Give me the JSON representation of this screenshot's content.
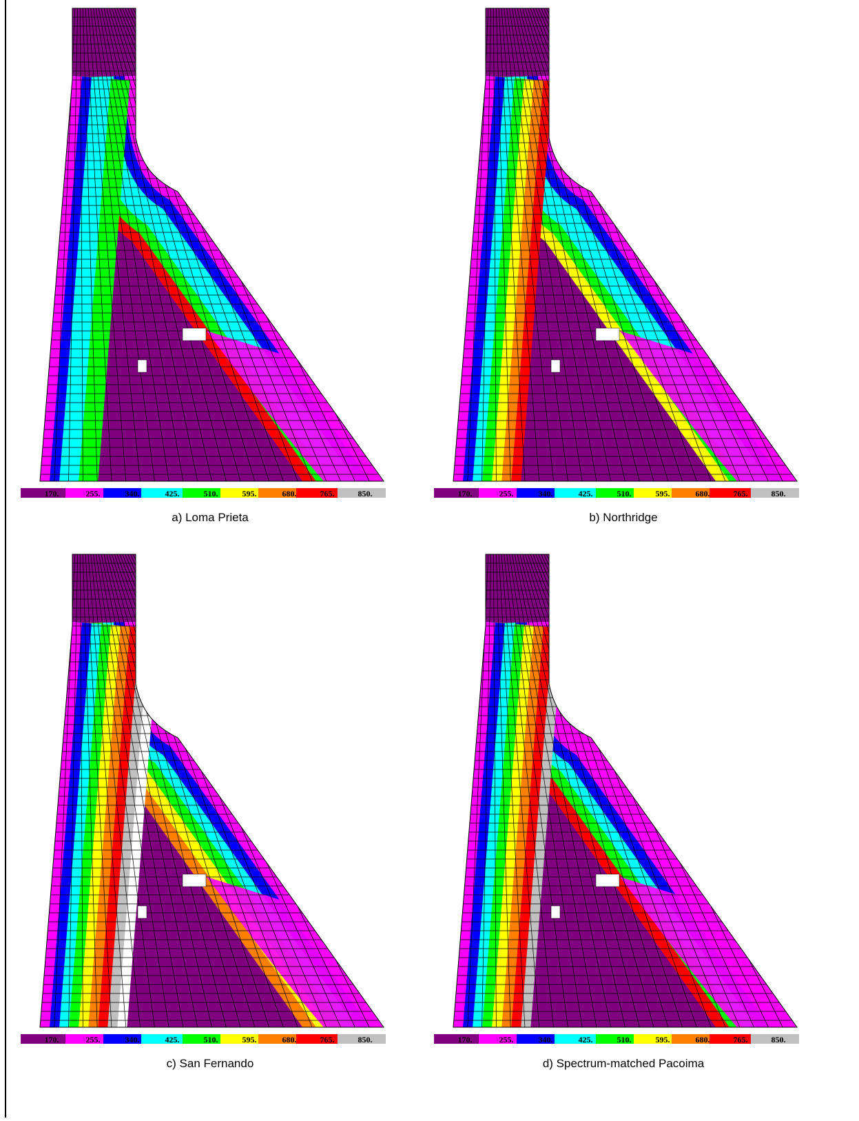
{
  "panels": [
    {
      "caption": "a) Loma Prieta"
    },
    {
      "caption": "b) Northridge"
    },
    {
      "caption": "c) San Fernando"
    },
    {
      "caption": "d) Spectrum-matched Pacoima"
    }
  ],
  "colorbar": {
    "labels": [
      "170.",
      "255.",
      "340.",
      "425.",
      "510.",
      "595.",
      "680.",
      "765.",
      "850."
    ]
  }
}
